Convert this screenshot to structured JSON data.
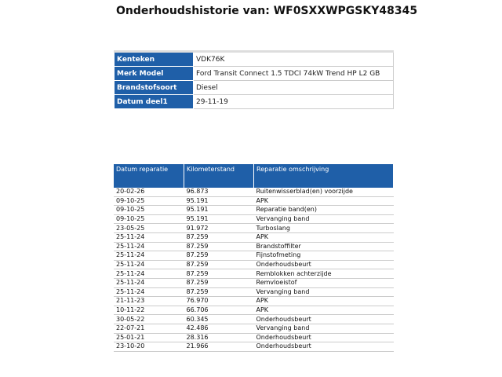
{
  "header": {
    "title": "Onderhoudshistorie van: WF0SXXWPGSKY48345"
  },
  "vehicle": {
    "rows": [
      [
        "Kenteken",
        "VDK76K"
      ],
      [
        "Merk Model",
        "Ford Transit Connect 1.5 TDCI 74kW Trend HP L2 GB"
      ],
      [
        "Brandstofsoort",
        "Diesel"
      ],
      [
        "Datum deel1",
        "29-11-19"
      ]
    ]
  },
  "history": {
    "columns": [
      "Datum reparatie",
      "Kilometerstand",
      "Reparatie omschrijving"
    ],
    "rows": [
      [
        "20-02-26",
        "96.873",
        "Ruitenwisserblad(en) voorzijde"
      ],
      [
        "09-10-25",
        "95.191",
        "APK"
      ],
      [
        "09-10-25",
        "95.191",
        "Reparatie band(en)"
      ],
      [
        "09-10-25",
        "95.191",
        "Vervanging band"
      ],
      [
        "23-05-25",
        "91.972",
        "Turboslang"
      ],
      [
        "25-11-24",
        "87.259",
        "APK"
      ],
      [
        "25-11-24",
        "87.259",
        "Brandstoffilter"
      ],
      [
        "25-11-24",
        "87.259",
        "Fijnstofmeting"
      ],
      [
        "25-11-24",
        "87.259",
        "Onderhoudsbeurt"
      ],
      [
        "25-11-24",
        "87.259",
        "Remblokken achterzijde"
      ],
      [
        "25-11-24",
        "87.259",
        "Remvloeistof"
      ],
      [
        "25-11-24",
        "87.259",
        "Vervanging band"
      ],
      [
        "21-11-23",
        "76.970",
        "APK"
      ],
      [
        "10-11-22",
        "66.706",
        "APK"
      ],
      [
        "30-05-22",
        "60.345",
        "Onderhoudsbeurt"
      ],
      [
        "22-07-21",
        "42.486",
        "Vervanging band"
      ],
      [
        "25-01-21",
        "28.316",
        "Onderhoudsbeurt"
      ],
      [
        "23-10-20",
        "21.966",
        "Onderhoudsbeurt"
      ]
    ]
  }
}
